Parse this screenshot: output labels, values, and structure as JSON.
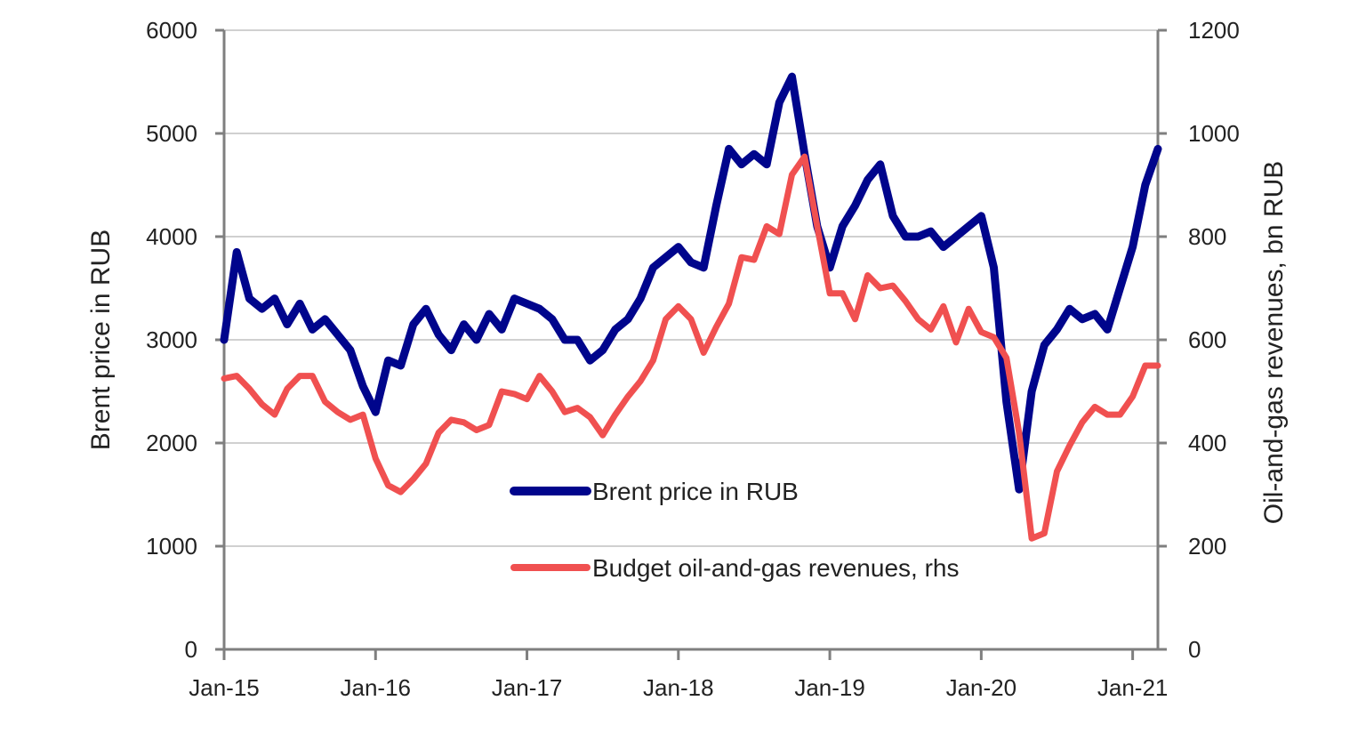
{
  "chart_data": {
    "type": "line",
    "title": "",
    "x_ticks": [
      "Jan-15",
      "Jan-16",
      "Jan-17",
      "Jan-18",
      "Jan-19",
      "Jan-20",
      "Jan-21"
    ],
    "xlim": [
      "2015-01",
      "2021-03"
    ],
    "y_left": {
      "label": "Brent price in RUB",
      "lim": [
        0,
        6000
      ],
      "ticks": [
        0,
        1000,
        2000,
        3000,
        4000,
        5000,
        6000
      ]
    },
    "y_right": {
      "label": "Oil-and-gas revenues, bn RUB",
      "lim": [
        0,
        1200
      ],
      "ticks": [
        0,
        200,
        400,
        600,
        800,
        1000,
        1200
      ]
    },
    "grid": true,
    "legend": {
      "placement": "center"
    },
    "series": [
      {
        "name": "Brent price in RUB",
        "axis": "left",
        "color": "#00058C",
        "x": [
          "2015-01",
          "2015-02",
          "2015-03",
          "2015-04",
          "2015-05",
          "2015-06",
          "2015-07",
          "2015-08",
          "2015-09",
          "2015-10",
          "2015-11",
          "2015-12",
          "2016-01",
          "2016-02",
          "2016-03",
          "2016-04",
          "2016-05",
          "2016-06",
          "2016-07",
          "2016-08",
          "2016-09",
          "2016-10",
          "2016-11",
          "2016-12",
          "2017-01",
          "2017-02",
          "2017-03",
          "2017-04",
          "2017-05",
          "2017-06",
          "2017-07",
          "2017-08",
          "2017-09",
          "2017-10",
          "2017-11",
          "2017-12",
          "2018-01",
          "2018-02",
          "2018-03",
          "2018-04",
          "2018-05",
          "2018-06",
          "2018-07",
          "2018-08",
          "2018-09",
          "2018-10",
          "2018-11",
          "2018-12",
          "2019-01",
          "2019-02",
          "2019-03",
          "2019-04",
          "2019-05",
          "2019-06",
          "2019-07",
          "2019-08",
          "2019-09",
          "2019-10",
          "2019-11",
          "2019-12",
          "2020-01",
          "2020-02",
          "2020-03",
          "2020-04",
          "2020-05",
          "2020-06",
          "2020-07",
          "2020-08",
          "2020-09",
          "2020-10",
          "2020-11",
          "2020-12",
          "2021-01",
          "2021-02",
          "2021-03"
        ],
        "values": [
          3000,
          3850,
          3400,
          3300,
          3400,
          3150,
          3350,
          3100,
          3200,
          3050,
          2900,
          2550,
          2300,
          2800,
          2750,
          3150,
          3300,
          3050,
          2900,
          3150,
          3000,
          3250,
          3100,
          3400,
          3350,
          3300,
          3200,
          3000,
          3000,
          2800,
          2900,
          3100,
          3200,
          3400,
          3700,
          3800,
          3900,
          3750,
          3700,
          4300,
          4850,
          4700,
          4800,
          4700,
          5300,
          5550,
          4800,
          4100,
          3700,
          4100,
          4300,
          4550,
          4700,
          4200,
          4000,
          4000,
          4050,
          3900,
          4000,
          4100,
          4200,
          3700,
          2400,
          1550,
          2500,
          2950,
          3100,
          3300,
          3200,
          3250,
          3100,
          3500,
          3900,
          4500,
          4850
        ]
      },
      {
        "name": "Budget oil-and-gas revenues, rhs",
        "axis": "right",
        "color": "#F05050",
        "x": [
          "2015-01",
          "2015-02",
          "2015-03",
          "2015-04",
          "2015-05",
          "2015-06",
          "2015-07",
          "2015-08",
          "2015-09",
          "2015-10",
          "2015-11",
          "2015-12",
          "2016-01",
          "2016-02",
          "2016-03",
          "2016-04",
          "2016-05",
          "2016-06",
          "2016-07",
          "2016-08",
          "2016-09",
          "2016-10",
          "2016-11",
          "2016-12",
          "2017-01",
          "2017-02",
          "2017-03",
          "2017-04",
          "2017-05",
          "2017-06",
          "2017-07",
          "2017-08",
          "2017-09",
          "2017-10",
          "2017-11",
          "2017-12",
          "2018-01",
          "2018-02",
          "2018-03",
          "2018-04",
          "2018-05",
          "2018-06",
          "2018-07",
          "2018-08",
          "2018-09",
          "2018-10",
          "2018-11",
          "2018-12",
          "2019-01",
          "2019-02",
          "2019-03",
          "2019-04",
          "2019-05",
          "2019-06",
          "2019-07",
          "2019-08",
          "2019-09",
          "2019-10",
          "2019-11",
          "2019-12",
          "2020-01",
          "2020-02",
          "2020-03",
          "2020-04",
          "2020-05",
          "2020-06",
          "2020-07",
          "2020-08",
          "2020-09",
          "2020-10",
          "2020-11",
          "2020-12",
          "2021-01",
          "2021-02",
          "2021-03"
        ],
        "values": [
          525,
          530,
          505,
          475,
          455,
          505,
          530,
          530,
          480,
          460,
          445,
          455,
          370,
          318,
          305,
          330,
          360,
          420,
          445,
          440,
          425,
          435,
          500,
          495,
          485,
          530,
          500,
          460,
          468,
          450,
          415,
          455,
          490,
          520,
          560,
          640,
          665,
          640,
          575,
          625,
          670,
          760,
          755,
          820,
          805,
          920,
          955,
          820,
          690,
          690,
          640,
          725,
          700,
          705,
          675,
          640,
          620,
          665,
          595,
          660,
          615,
          605,
          565,
          420,
          215,
          225,
          345,
          395,
          440,
          470,
          455,
          455,
          490,
          550,
          550
        ]
      }
    ]
  }
}
